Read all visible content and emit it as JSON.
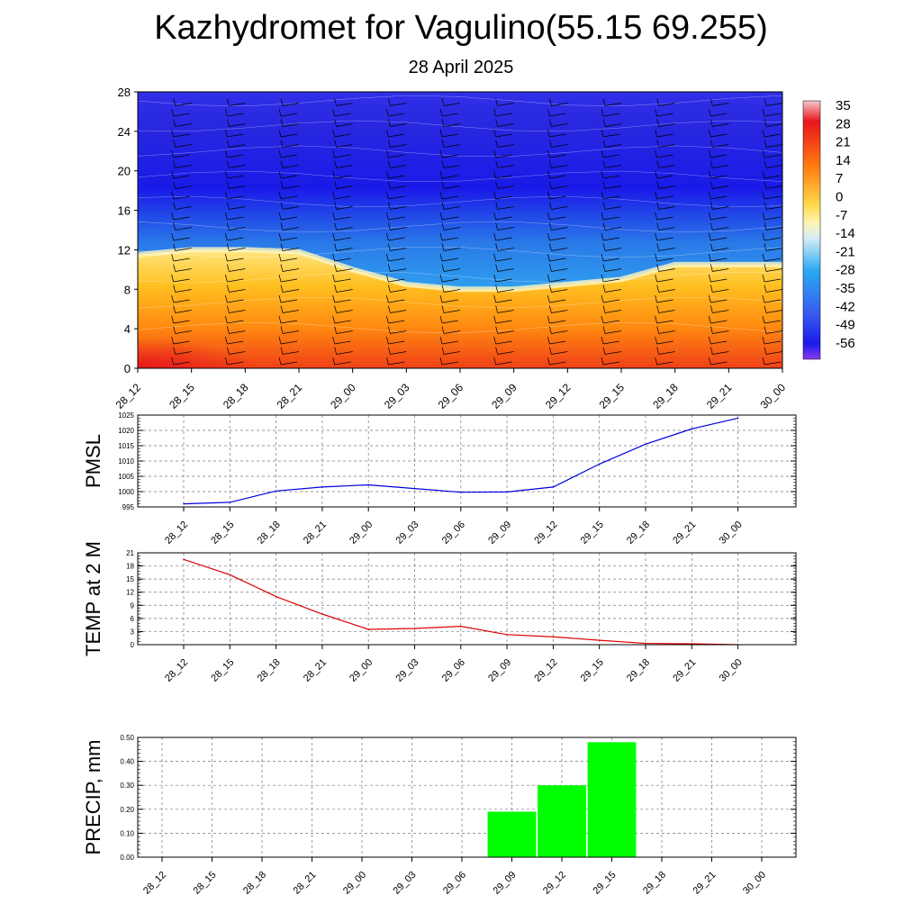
{
  "title": "Kazhydromet for Vagulino(55.15 69.255)",
  "subtitle": "28 April 2025",
  "time_labels": [
    "28_12",
    "28_15",
    "28_18",
    "28_21",
    "29_00",
    "29_03",
    "29_06",
    "29_09",
    "29_12",
    "29_15",
    "29_18",
    "29_21",
    "30_00"
  ],
  "chart_data": [
    {
      "type": "heatmap",
      "name_hidden": true,
      "ylim": [
        0,
        28
      ],
      "y_ticks": [
        0,
        4,
        8,
        12,
        16,
        20,
        24,
        28
      ],
      "tropopause_height": [
        11.5,
        12.0,
        12.0,
        11.8,
        10.0,
        8.5,
        8.0,
        8.0,
        8.5,
        9.0,
        10.5,
        10.5,
        10.5
      ],
      "colorbar_labels": [
        "35",
        "28",
        "21",
        "14",
        "7",
        "0",
        "-7",
        "-14",
        "-21",
        "-28",
        "-35",
        "-42",
        "-49",
        "-56"
      ],
      "colors": {
        "warm": "#e8141e",
        "mid": "#ffd84a",
        "cold": "#28a8f0",
        "deep": "#1a1ae8"
      }
    },
    {
      "type": "line",
      "ylabel": "PMSL",
      "ylim": [
        995,
        1025
      ],
      "y_ticks": [
        "995",
        "1000",
        "1005",
        "1010",
        "1015",
        "1020",
        "1025"
      ],
      "values": [
        996,
        996.5,
        1000.2,
        1001.5,
        1002.2,
        1001.0,
        999.8,
        999.9,
        1001.5,
        1009.0,
        1015.5,
        1020.5,
        1024.0
      ],
      "color": "#0000e0"
    },
    {
      "type": "line",
      "ylabel": "TEMP at 2 M",
      "ylim": [
        0,
        21
      ],
      "y_ticks": [
        "0",
        "3",
        "6",
        "9",
        "12",
        "15",
        "18",
        "21"
      ],
      "values": [
        19.5,
        16.0,
        11.0,
        7.0,
        3.5,
        3.7,
        4.2,
        2.3,
        1.8,
        1.0,
        0.3,
        0.2,
        0.0
      ],
      "color": "#e00000"
    },
    {
      "type": "bar",
      "ylabel": "PRECIP, mm",
      "ylim": [
        0,
        0.5
      ],
      "y_ticks": [
        "0.00",
        "0.10",
        "0.20",
        "0.30",
        "0.40",
        "0.50"
      ],
      "values": [
        0,
        0,
        0,
        0,
        0,
        0,
        0,
        0.19,
        0.3,
        0.48,
        0,
        0,
        0
      ],
      "color": "#00ff00"
    }
  ]
}
